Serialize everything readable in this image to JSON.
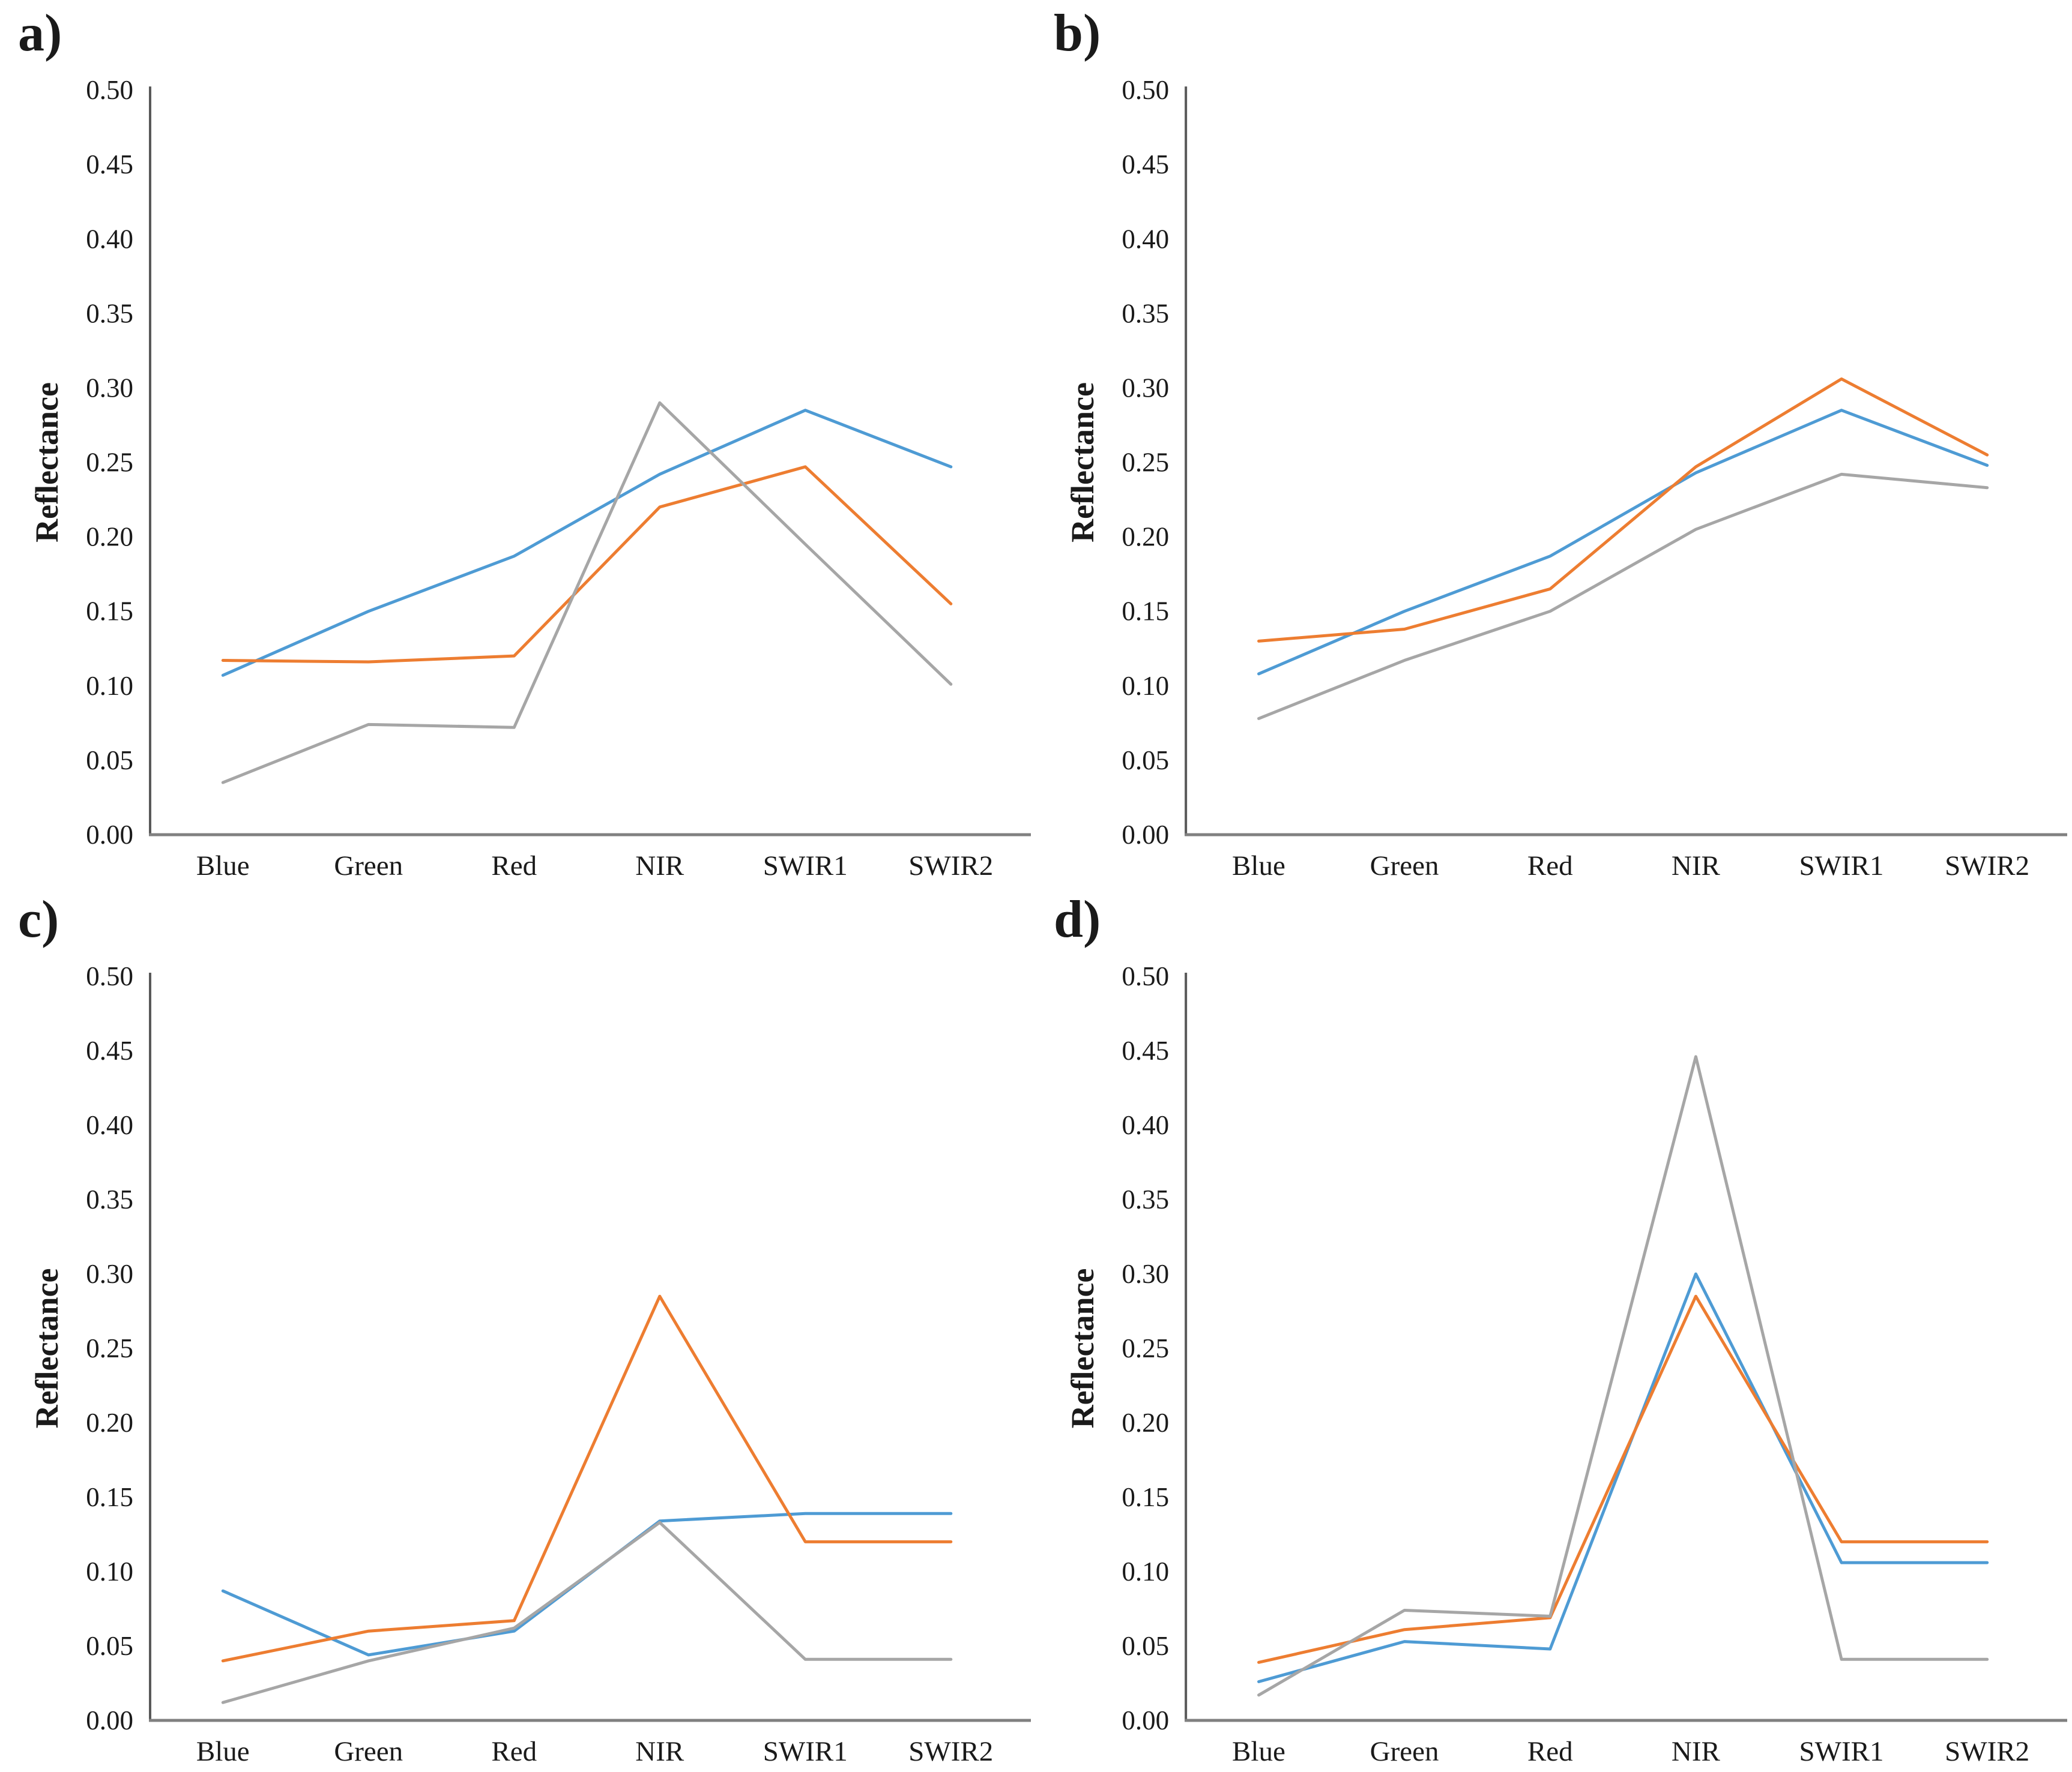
{
  "figure": {
    "ylabel": "Reflectance",
    "categories": [
      "Blue",
      "Green",
      "Red",
      "NIR",
      "SWIR1",
      "SWIR2"
    ],
    "ytick_labels": [
      "0.00",
      "0.05",
      "0.10",
      "0.15",
      "0.20",
      "0.25",
      "0.30",
      "0.35",
      "0.40",
      "0.45",
      "0.50"
    ]
  },
  "colors": {
    "blue_series": "#4E9BD4",
    "orange_series": "#ED7D31",
    "gray_series": "#A6A6A6",
    "y_axis": "#595959",
    "x_axis": "#808080",
    "text": "#1a1a1a"
  },
  "chart_data": [
    {
      "type": "line",
      "panel_label": "a)",
      "ylabel": "Reflectance",
      "xlabel": "",
      "categories": [
        "Blue",
        "Green",
        "Red",
        "NIR",
        "SWIR1",
        "SWIR2"
      ],
      "ylim": [
        0.0,
        0.5
      ],
      "ytick_step": 0.05,
      "ytick_labels": [
        "0.00",
        "0.05",
        "0.10",
        "0.15",
        "0.20",
        "0.25",
        "0.30",
        "0.35",
        "0.40",
        "0.45",
        "0.50"
      ],
      "grid": false,
      "legend": "none",
      "series": [
        {
          "name": "blue",
          "color": "#4E9BD4",
          "values": [
            0.107,
            0.15,
            0.187,
            0.242,
            0.285,
            0.247
          ]
        },
        {
          "name": "orange",
          "color": "#ED7D31",
          "values": [
            0.117,
            0.116,
            0.12,
            0.22,
            0.247,
            0.155
          ]
        },
        {
          "name": "gray",
          "color": "#A6A6A6",
          "values": [
            0.035,
            0.074,
            0.072,
            0.29,
            0.195,
            0.101
          ]
        }
      ]
    },
    {
      "type": "line",
      "panel_label": "b)",
      "ylabel": "Reflectance",
      "xlabel": "",
      "categories": [
        "Blue",
        "Green",
        "Red",
        "NIR",
        "SWIR1",
        "SWIR2"
      ],
      "ylim": [
        0.0,
        0.5
      ],
      "ytick_step": 0.05,
      "ytick_labels": [
        "0.00",
        "0.05",
        "0.10",
        "0.15",
        "0.20",
        "0.25",
        "0.30",
        "0.35",
        "0.40",
        "0.45",
        "0.50"
      ],
      "grid": false,
      "legend": "none",
      "series": [
        {
          "name": "blue",
          "color": "#4E9BD4",
          "values": [
            0.108,
            0.15,
            0.187,
            0.243,
            0.285,
            0.248
          ]
        },
        {
          "name": "orange",
          "color": "#ED7D31",
          "values": [
            0.13,
            0.138,
            0.165,
            0.247,
            0.306,
            0.255
          ]
        },
        {
          "name": "gray",
          "color": "#A6A6A6",
          "values": [
            0.078,
            0.117,
            0.15,
            0.205,
            0.242,
            0.233
          ]
        }
      ]
    },
    {
      "type": "line",
      "panel_label": "c)",
      "ylabel": "Reflectance",
      "xlabel": "",
      "categories": [
        "Blue",
        "Green",
        "Red",
        "NIR",
        "SWIR1",
        "SWIR2"
      ],
      "ylim": [
        0.0,
        0.5
      ],
      "ytick_step": 0.05,
      "ytick_labels": [
        "0.00",
        "0.05",
        "0.10",
        "0.15",
        "0.20",
        "0.25",
        "0.30",
        "0.35",
        "0.40",
        "0.45",
        "0.50"
      ],
      "grid": false,
      "legend": "none",
      "series": [
        {
          "name": "blue",
          "color": "#4E9BD4",
          "values": [
            0.087,
            0.044,
            0.06,
            0.134,
            0.139,
            0.139
          ]
        },
        {
          "name": "orange",
          "color": "#ED7D31",
          "values": [
            0.04,
            0.06,
            0.067,
            0.285,
            0.12,
            0.12
          ]
        },
        {
          "name": "gray",
          "color": "#A6A6A6",
          "values": [
            0.012,
            0.04,
            0.062,
            0.133,
            0.041,
            0.041
          ]
        }
      ]
    },
    {
      "type": "line",
      "panel_label": "d)",
      "ylabel": "Reflectance",
      "xlabel": "",
      "categories": [
        "Blue",
        "Green",
        "Red",
        "NIR",
        "SWIR1",
        "SWIR2"
      ],
      "ylim": [
        0.0,
        0.5
      ],
      "ytick_step": 0.05,
      "ytick_labels": [
        "0.00",
        "0.05",
        "0.10",
        "0.15",
        "0.20",
        "0.25",
        "0.30",
        "0.35",
        "0.40",
        "0.45",
        "0.50"
      ],
      "grid": false,
      "legend": "none",
      "series": [
        {
          "name": "blue",
          "color": "#4E9BD4",
          "values": [
            0.026,
            0.053,
            0.048,
            0.3,
            0.106,
            0.106
          ]
        },
        {
          "name": "orange",
          "color": "#ED7D31",
          "values": [
            0.039,
            0.061,
            0.069,
            0.285,
            0.12,
            0.12
          ]
        },
        {
          "name": "gray",
          "color": "#A6A6A6",
          "values": [
            0.017,
            0.074,
            0.07,
            0.446,
            0.041,
            0.041
          ]
        }
      ]
    }
  ]
}
